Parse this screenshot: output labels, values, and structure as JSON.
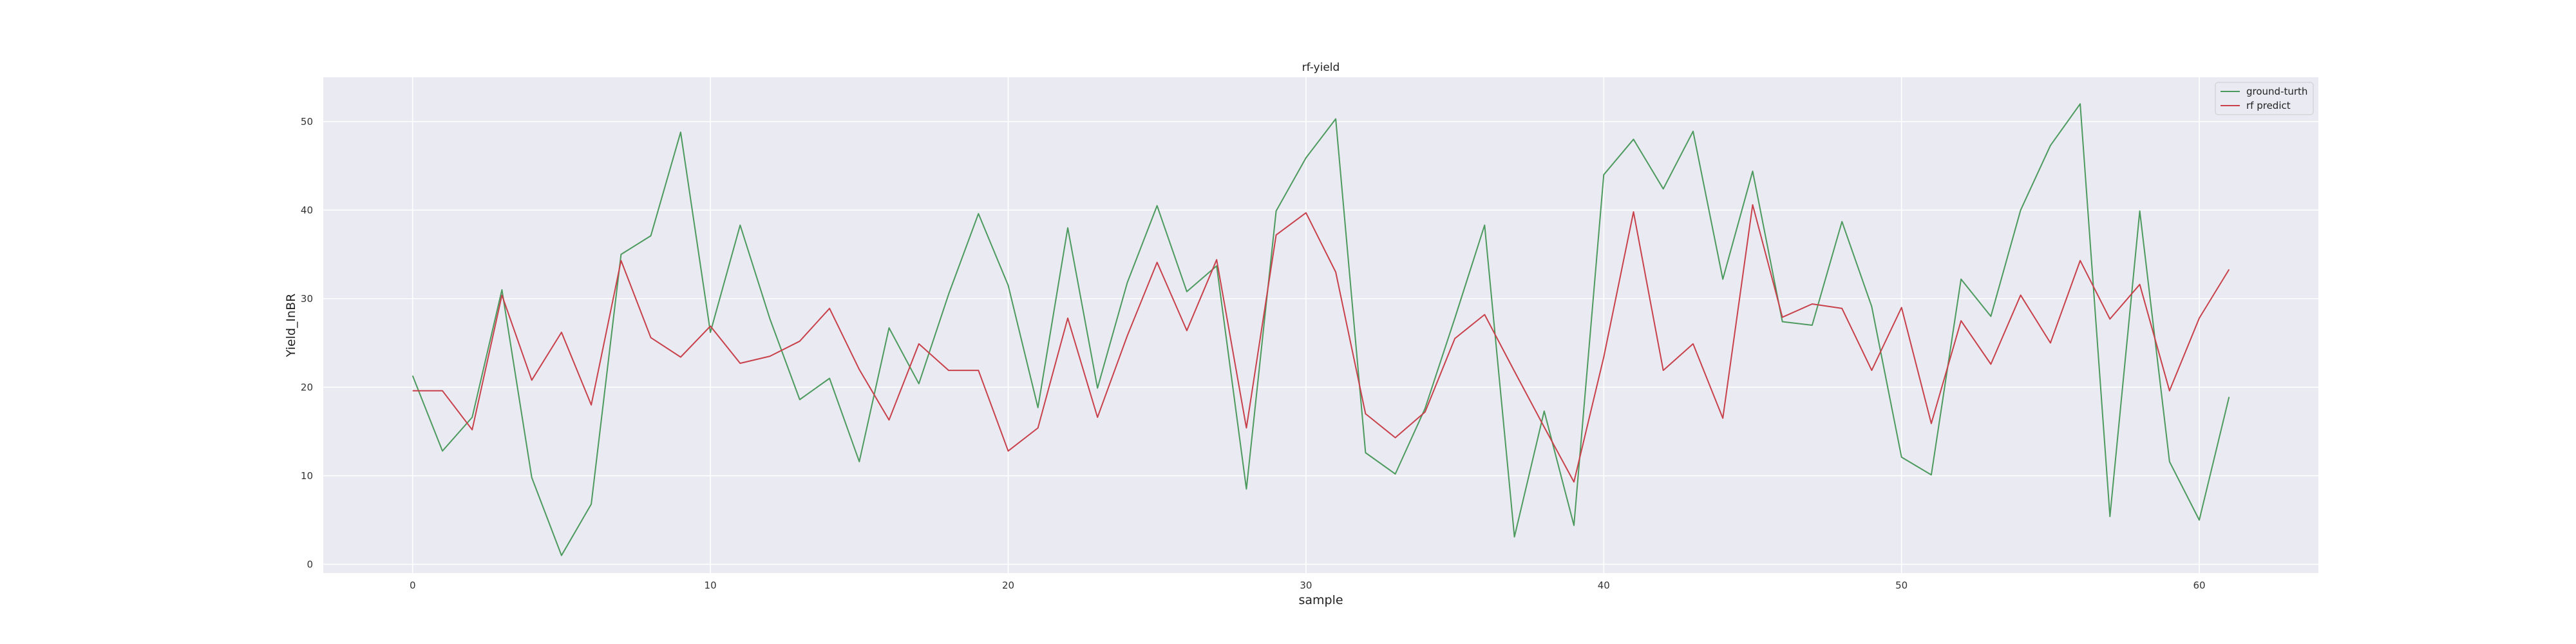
{
  "chart_data": {
    "type": "line",
    "title": "rf-yield",
    "xlabel": "sample",
    "ylabel": "Yield_InBR",
    "xlim": [
      -3,
      64
    ],
    "ylim": [
      -1,
      55
    ],
    "xticks": [
      0,
      10,
      20,
      30,
      40,
      50,
      60
    ],
    "yticks": [
      0,
      10,
      20,
      30,
      40,
      50
    ],
    "grid": true,
    "legend_position": "top-right",
    "x": [
      0,
      1,
      2,
      3,
      4,
      5,
      6,
      7,
      8,
      9,
      10,
      11,
      12,
      13,
      14,
      15,
      16,
      17,
      18,
      19,
      20,
      21,
      22,
      23,
      24,
      25,
      26,
      27,
      28,
      29,
      30,
      31,
      32,
      33,
      34,
      35,
      36,
      37,
      38,
      39,
      40,
      41,
      42,
      43,
      44,
      45,
      46,
      47,
      48,
      49,
      50,
      51,
      52,
      53,
      54,
      55,
      56,
      57,
      58,
      59,
      60,
      61
    ],
    "series": [
      {
        "name": "ground-turth",
        "color": "#4c9a5e",
        "values": [
          21.3,
          12.8,
          16.6,
          31.0,
          9.8,
          1.0,
          6.8,
          35.0,
          37.1,
          48.8,
          26.2,
          38.3,
          27.7,
          18.6,
          21.0,
          11.6,
          26.7,
          20.4,
          30.5,
          39.6,
          31.5,
          17.7,
          38.0,
          19.9,
          31.8,
          40.5,
          30.8,
          33.7,
          8.5,
          39.9,
          45.9,
          50.3,
          12.6,
          10.2,
          17.6,
          27.8,
          38.3,
          3.1,
          17.3,
          4.4,
          44.0,
          48.0,
          42.4,
          48.9,
          32.2,
          44.4,
          27.4,
          27.0,
          38.7,
          29.1,
          12.1,
          10.1,
          32.2,
          28.0,
          40.0,
          47.3,
          52.0,
          5.4,
          39.9,
          11.6,
          5.0,
          18.9
        ]
      },
      {
        "name": "rf predict",
        "color": "#c8404a",
        "values": [
          19.6,
          19.6,
          15.2,
          30.4,
          20.8,
          26.2,
          18.0,
          34.3,
          25.6,
          23.4,
          26.9,
          22.7,
          23.5,
          25.2,
          28.9,
          22.0,
          16.3,
          24.9,
          21.9,
          21.9,
          12.8,
          15.4,
          27.8,
          16.6,
          25.8,
          34.1,
          26.4,
          34.4,
          15.4,
          37.2,
          39.7,
          33.0,
          17.0,
          14.3,
          17.2,
          25.5,
          28.2,
          21.8,
          15.5,
          9.3,
          23.4,
          39.8,
          21.9,
          24.9,
          16.5,
          40.6,
          27.9,
          29.4,
          28.9,
          21.9,
          29.0,
          15.9,
          27.5,
          22.6,
          30.4,
          25.0,
          34.3,
          27.7,
          31.6,
          19.6,
          27.8,
          33.3
        ]
      }
    ]
  }
}
